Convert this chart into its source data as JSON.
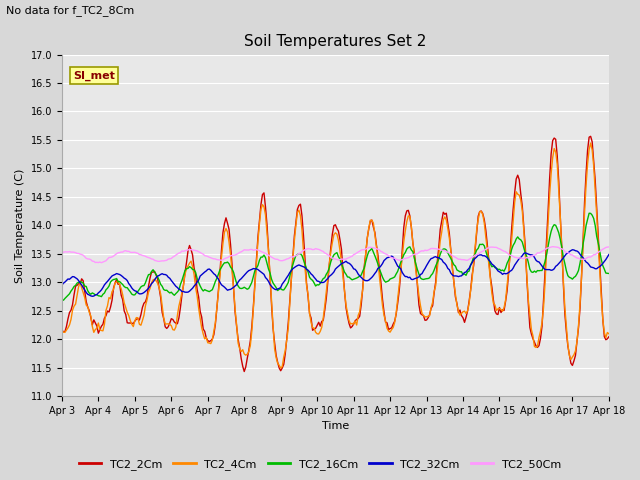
{
  "title": "Soil Temperatures Set 2",
  "subtitle": "No data for f_TC2_8Cm",
  "xlabel": "Time",
  "ylabel": "Soil Temperature (C)",
  "ylim": [
    11.0,
    17.0
  ],
  "yticks": [
    11.0,
    11.5,
    12.0,
    12.5,
    13.0,
    13.5,
    14.0,
    14.5,
    15.0,
    15.5,
    16.0,
    16.5,
    17.0
  ],
  "xtick_labels": [
    "Apr 3",
    "Apr 4",
    "Apr 5",
    "Apr 6",
    "Apr 7",
    "Apr 8",
    "Apr 9",
    "Apr 10",
    "Apr 11",
    "Apr 12",
    "Apr 13",
    "Apr 14",
    "Apr 15",
    "Apr 16",
    "Apr 17",
    "Apr 18"
  ],
  "colors": {
    "TC2_2Cm": "#cc0000",
    "TC2_4Cm": "#ff8800",
    "TC2_16Cm": "#00bb00",
    "TC2_32Cm": "#0000cc",
    "TC2_50Cm": "#ff99ff"
  },
  "legend_label": "SI_met",
  "legend_box_facecolor": "#ffff99",
  "legend_box_edgecolor": "#999900",
  "legend_text_color": "#880000",
  "bg_color": "#d8d8d8",
  "plot_bg_color": "#e8e8e8",
  "linewidth": 1.0,
  "figwidth": 6.4,
  "figheight": 4.8,
  "dpi": 100
}
